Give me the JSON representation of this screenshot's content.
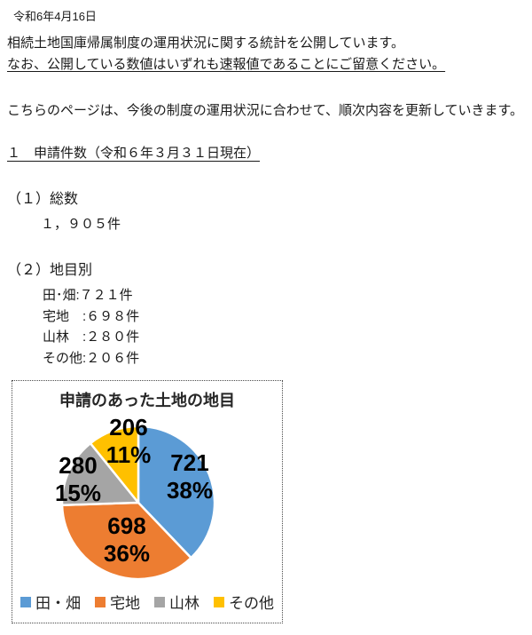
{
  "page": {
    "date": "令和6年4月16日",
    "intro": {
      "line1": "相続土地国庫帰属制度の運用状況に関する統計を公開しています。",
      "line2": "なお、公開している数値はいずれも速報値であることにご留意ください。"
    },
    "update_note": "こちらのページは、今後の制度の運用状況に合わせて、順次内容を更新していきます。",
    "section": {
      "heading": "１　申請件数（令和６年３月３１日現在）",
      "total": {
        "label": "（１）総数",
        "value": "１，９０５件"
      },
      "by_category": {
        "label": "（２）地目別",
        "items": [
          "田･畑:７２１件",
          "宅地　:６９８件",
          "山林　:２８０件",
          "その他:２０６件"
        ]
      }
    }
  },
  "chart_data": {
    "type": "pie",
    "title": "申請のあった土地の地目",
    "categories": [
      "田・畑",
      "宅地",
      "山林",
      "その他"
    ],
    "values": [
      721,
      698,
      280,
      206
    ],
    "percent_labels": [
      "38%",
      "36%",
      "15%",
      "11%"
    ],
    "colors": [
      "#5B9BD5",
      "#ED7D31",
      "#A5A5A5",
      "#FFC000"
    ],
    "total": 1905,
    "start_angle_deg": 0,
    "direction": "clockwise",
    "legend_position": "bottom",
    "label_color": "#000000"
  }
}
